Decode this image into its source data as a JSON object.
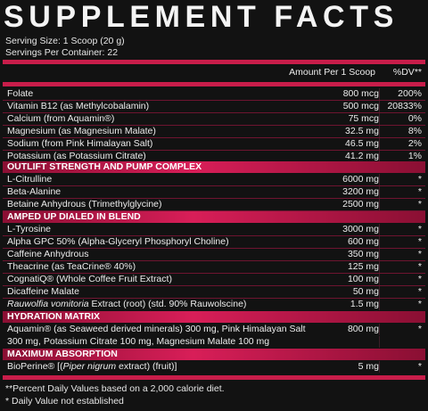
{
  "title": "SUPPLEMENT FACTS",
  "serving_size": "Serving Size: 1 Scoop (20 g)",
  "servings_per_container": "Servings Per Container: 22",
  "header": {
    "amount": "Amount Per 1 Scoop",
    "dv": "%DV**"
  },
  "vitamins": [
    {
      "name": "Folate",
      "amount": "800 mcg",
      "dv": "200%"
    },
    {
      "name": "Vitamin B12 (as Methylcobalamin)",
      "amount": "500 mcg",
      "dv": "20833%"
    },
    {
      "name": "Calcium (from Aquamin®)",
      "amount": "75 mcg",
      "dv": "0%"
    },
    {
      "name": "Magnesium (as Magnesium Malate)",
      "amount": "32.5 mg",
      "dv": "8%"
    },
    {
      "name": "Sodium (from Pink Himalayan Salt)",
      "amount": "46.5 mg",
      "dv": "2%"
    },
    {
      "name": "Potassium (as Potassium Citrate)",
      "amount": "41.2 mg",
      "dv": "1%"
    }
  ],
  "sections": {
    "pump": "OUTLIFT STRENGTH AND PUMP COMPLEX",
    "amped": "AMPED UP DIALED IN BLEND",
    "hydration": "HYDRATION MATRIX",
    "absorption": "MAXIMUM ABSORPTION"
  },
  "pump_items": [
    {
      "name": "L-Citrulline",
      "amount": "6000 mg",
      "dv": "*"
    },
    {
      "name": "Beta-Alanine",
      "amount": "3200 mg",
      "dv": "*"
    },
    {
      "name": "Betaine Anhydrous (Trimethylglycine)",
      "amount": "2500 mg",
      "dv": "*"
    }
  ],
  "amped_items": [
    {
      "name": "L-Tyrosine",
      "amount": "3000 mg",
      "dv": "*"
    },
    {
      "name": "Alpha GPC 50% (Alpha-Glyceryl Phosphoryl Choline)",
      "amount": "600 mg",
      "dv": "*"
    },
    {
      "name": "Caffeine Anhydrous",
      "amount": "350 mg",
      "dv": "*"
    },
    {
      "name": "Theacrine (as TeaCrine® 40%)",
      "amount": "125 mg",
      "dv": "*"
    },
    {
      "name": "CognatiQ® (Whole Coffee Fruit Extract)",
      "amount": "100 mg",
      "dv": "*"
    },
    {
      "name": "Dicaffeine Malate",
      "amount": "50 mg",
      "dv": "*"
    }
  ],
  "rauwolfia": {
    "name_italic": "Rauwolfia vomitoria",
    "name_rest": " Extract (root) (std. 90% Rauwolscine)",
    "amount": "1.5 mg",
    "dv": "*"
  },
  "hydration": {
    "line1": "Aquamin® (as Seaweed derived minerals) 300 mg, Pink Himalayan Salt",
    "line2": "300 mg, Potassium Citrate 100 mg, Magnesium Malate 100 mg",
    "amount": "800 mg",
    "dv": "*"
  },
  "bioperine": {
    "pre": "BioPerine® [(",
    "italic": "Piper nigrum",
    "post": " extract) (fruit)]",
    "amount": "5 mg",
    "dv": "*"
  },
  "footnotes": [
    "**Percent Daily Values based on a 2,000 calorie diet.",
    "* Daily Value not established"
  ],
  "colors": {
    "accent": "#c81d4a",
    "background": "#121212",
    "text": "#ececec"
  }
}
